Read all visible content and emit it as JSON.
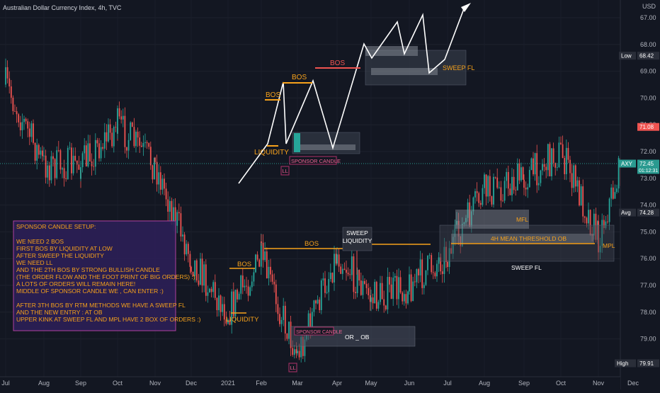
{
  "header": {
    "title": "Australian Dollar Currency Index, 4h, TVC",
    "currency": "USD"
  },
  "chart_data": {
    "type": "candlestick",
    "title": "Australian Dollar Currency Index, 4h, TVC",
    "y_axis": {
      "ticks": [
        67.0,
        68.0,
        69.0,
        70.0,
        71.0,
        72.0,
        73.0,
        74.0,
        75.0,
        76.0,
        77.0,
        78.0,
        79.0
      ],
      "range": [
        66.7,
        80.3
      ],
      "inverted": true
    },
    "x_axis": {
      "labels": [
        "Jul",
        "Aug",
        "Sep",
        "Oct",
        "Nov",
        "Dec",
        "2021",
        "Feb",
        "Mar",
        "Apr",
        "May",
        "Jun",
        "Jul",
        "Aug",
        "Sep",
        "Oct",
        "Nov",
        "Dec"
      ]
    },
    "price_tags": [
      {
        "name": "Low",
        "value": "68.42"
      },
      {
        "name": "",
        "value": "71.08"
      },
      {
        "name": "AXY",
        "value": "72.45",
        "sub": "01:12:31"
      },
      {
        "name": "Avg",
        "value": "74.28"
      },
      {
        "name": "High",
        "value": "79.91"
      }
    ],
    "series_path": [
      [
        "Jul",
        69.5
      ],
      [
        "Aug",
        72.5
      ],
      [
        "Sep",
        72.5
      ],
      [
        "Oct",
        71.0
      ],
      [
        "Nov",
        72.5
      ],
      [
        "Dec",
        76.0
      ],
      [
        "2021",
        78.0
      ],
      [
        "Feb",
        76.0
      ],
      [
        "Mar",
        79.6
      ],
      [
        "Apr",
        75.8
      ],
      [
        "May",
        77.5
      ],
      [
        "Jun",
        77.0
      ],
      [
        "Jul",
        75.8
      ],
      [
        "Aug",
        73.5
      ],
      [
        "Sep",
        73.0
      ],
      [
        "Oct",
        72.0
      ],
      [
        "Nov",
        75.2
      ],
      [
        "Dec",
        71.2
      ]
    ]
  },
  "annotations": {
    "setup_title": "SPONSOR CANDLE SETUP:",
    "setup_lines": [
      "WE NEED 2 BOS",
      "FIRST BOS BY LIQUIDITY AT LOW",
      "AFTER SWEEP THE LIQUIDITY",
      "WE NEED LL",
      "AND THE 2TH BOS BY STRONG BULLISH CANDLE",
      "(THE ORDER FLOW AND THE FOOT PRINT OF BIG ORDERS)  :)",
      "A LOTS OF ORDERS WILL REMAIN HERE!",
      "MIDDLE OF SPONSOR CANDLE WE , CAN ENTER :)",
      "",
      "AFTER 3TH BOS BY RTM METHODS WE HAVE A SWEEP FL",
      "AND THE NEW ENTRY : AT OB",
      "UPPER KINK AT SWEEP FL AND MPL HAVE 2 BOX OF ORDERS :)"
    ],
    "bos": "BOS",
    "liquidity": "LIQUIDITY",
    "sponsor_candle": "SPONSOR CANDLE",
    "ll": "LL",
    "sweep_fl": "SWEEP FL",
    "sweep_liquidity_1": "SWEEP",
    "sweep_liquidity_2": "LIQUIDITY",
    "or_ob": "OR _ OB",
    "mfl": "MFL",
    "mean_threshold": "4H MEAN THRESHOLD OB",
    "mpl": "MPL"
  },
  "colors": {
    "background": "#131722",
    "bull": "#26a69a",
    "bear": "#ef5350",
    "orange": "#f7a21b",
    "white": "#ffffff",
    "box_fill": "#4a5060",
    "setup_bg": "#2b1f56",
    "setup_border": "#b040a0",
    "last_price": "#2a9a90"
  }
}
